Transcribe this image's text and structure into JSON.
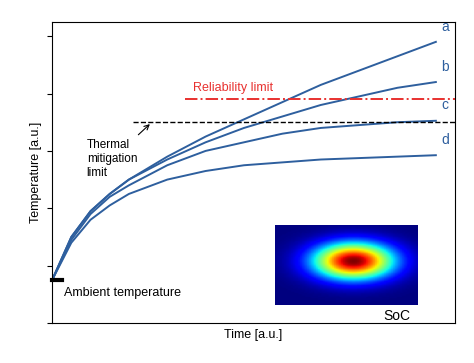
{
  "chart_data": {
    "type": "line",
    "x_label": "Time [a.u.]",
    "y_label": "Temperature [a.u.]",
    "x": [
      0,
      0.5,
      1,
      1.5,
      2,
      3,
      4,
      5,
      6,
      7,
      8,
      9,
      10
    ],
    "series": [
      {
        "name": "a",
        "color": "#2e5f9e",
        "values": [
          1.5,
          3.0,
          3.9,
          4.5,
          5.0,
          5.8,
          6.5,
          7.1,
          7.7,
          8.3,
          8.8,
          9.3,
          9.8
        ]
      },
      {
        "name": "b",
        "color": "#2e5f9e",
        "values": [
          1.5,
          3.0,
          3.9,
          4.5,
          5.0,
          5.7,
          6.3,
          6.8,
          7.2,
          7.6,
          7.9,
          8.2,
          8.4
        ]
      },
      {
        "name": "c",
        "color": "#2e5f9e",
        "values": [
          1.5,
          2.9,
          3.8,
          4.4,
          4.8,
          5.5,
          6.0,
          6.3,
          6.6,
          6.8,
          6.9,
          7.0,
          7.05
        ]
      },
      {
        "name": "d",
        "color": "#2e5f9e",
        "values": [
          1.5,
          2.8,
          3.6,
          4.1,
          4.5,
          5.0,
          5.3,
          5.5,
          5.6,
          5.7,
          5.75,
          5.8,
          5.85
        ]
      }
    ],
    "thresholds": [
      {
        "name": "Reliability limit",
        "value": 7.8,
        "color": "#e8312f",
        "line_style": "dashdot"
      },
      {
        "name": "Thermal\nmitigation\nlimit",
        "value": 7.0,
        "color": "#000000",
        "line_style": "dashed"
      }
    ],
    "ambient": {
      "name": "Ambient temperature",
      "value": 1.5
    },
    "inset_label": "SoC",
    "xlim": [
      0,
      10.5
    ],
    "ylim": [
      0,
      10.5
    ],
    "yticks": [
      0,
      2,
      4,
      6,
      8,
      10
    ],
    "tick_labels": false,
    "grid": false
  }
}
